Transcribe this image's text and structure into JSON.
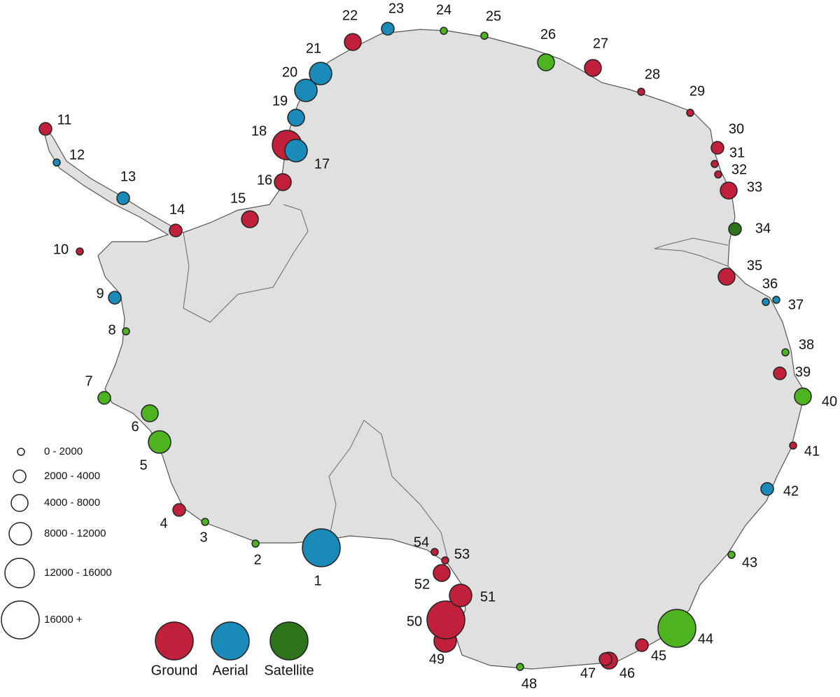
{
  "size_legend": [
    "0 - 2000",
    "2000 - 4000",
    "4000 - 8000",
    "8000 - 12000",
    "12000 - 16000",
    "16000 +"
  ],
  "method_legend": [
    {
      "name": "Ground",
      "color": "#c0203a"
    },
    {
      "name": "Aerial",
      "color": "#1a8ab8"
    },
    {
      "name": "Satellite",
      "color": "#2e741a"
    }
  ],
  "sites": [
    {
      "label": "1",
      "color": "#1a8ab8",
      "size_class": "16000 +"
    },
    {
      "label": "2",
      "color": "#4db320",
      "size_class": "0 - 2000"
    },
    {
      "label": "3",
      "color": "#4db320",
      "size_class": "0 - 2000"
    },
    {
      "label": "4",
      "color": "#c0203a",
      "size_class": "2000 - 4000"
    },
    {
      "label": "5",
      "color": "#4db320",
      "size_class": "8000 - 12000"
    },
    {
      "label": "6",
      "color": "#4db320",
      "size_class": "4000 - 8000"
    },
    {
      "label": "7",
      "color": "#4db320",
      "size_class": "2000 - 4000"
    },
    {
      "label": "8",
      "color": "#4db320",
      "size_class": "0 - 2000"
    },
    {
      "label": "9",
      "color": "#1a8ab8",
      "size_class": "2000 - 4000"
    },
    {
      "label": "10",
      "color": "#c0203a",
      "size_class": "0 - 2000"
    },
    {
      "label": "11",
      "color": "#c0203a",
      "size_class": "2000 - 4000"
    },
    {
      "label": "12",
      "color": "#1a8ab8",
      "size_class": "0 - 2000"
    },
    {
      "label": "13",
      "color": "#1a8ab8",
      "size_class": "2000 - 4000"
    },
    {
      "label": "14",
      "color": "#c0203a",
      "size_class": "2000 - 4000"
    },
    {
      "label": "15",
      "color": "#c0203a",
      "size_class": "4000 - 8000"
    },
    {
      "label": "16",
      "color": "#c0203a",
      "size_class": "4000 - 8000"
    },
    {
      "label": "18",
      "color": "#c0203a",
      "size_class": "12000 - 16000"
    },
    {
      "label": "17",
      "color": "#1a8ab8",
      "size_class": "8000 - 12000"
    },
    {
      "label": "19",
      "color": "#1a8ab8",
      "size_class": "4000 - 8000"
    },
    {
      "label": "20",
      "color": "#1a8ab8",
      "size_class": "8000 - 12000"
    },
    {
      "label": "21",
      "color": "#1a8ab8",
      "size_class": "8000 - 12000"
    },
    {
      "label": "22",
      "color": "#c0203a",
      "size_class": "4000 - 8000"
    },
    {
      "label": "23",
      "color": "#1a8ab8",
      "size_class": "2000 - 4000"
    },
    {
      "label": "24",
      "color": "#4db320",
      "size_class": "0 - 2000"
    },
    {
      "label": "25",
      "color": "#4db320",
      "size_class": "0 - 2000"
    },
    {
      "label": "26",
      "color": "#4db320",
      "size_class": "4000 - 8000"
    },
    {
      "label": "27",
      "color": "#c0203a",
      "size_class": "4000 - 8000"
    },
    {
      "label": "28",
      "color": "#c0203a",
      "size_class": "0 - 2000"
    },
    {
      "label": "29",
      "color": "#c0203a",
      "size_class": "0 - 2000"
    },
    {
      "label": "30",
      "color": "#c0203a",
      "size_class": "2000 - 4000"
    },
    {
      "label": "31",
      "color": "#c0203a",
      "size_class": "0 - 2000"
    },
    {
      "label": "32",
      "color": "#c0203a",
      "size_class": "0 - 2000"
    },
    {
      "label": "33",
      "color": "#c0203a",
      "size_class": "4000 - 8000"
    },
    {
      "label": "34",
      "color": "#2e741a",
      "size_class": "2000 - 4000"
    },
    {
      "label": "35",
      "color": "#c0203a",
      "size_class": "4000 - 8000"
    },
    {
      "label": "36",
      "color": "#1a8ab8",
      "size_class": "0 - 2000"
    },
    {
      "label": "37",
      "color": "#1a8ab8",
      "size_class": "0 - 2000"
    },
    {
      "label": "38",
      "color": "#4db320",
      "size_class": "0 - 2000"
    },
    {
      "label": "39",
      "color": "#c0203a",
      "size_class": "2000 - 4000"
    },
    {
      "label": "40",
      "color": "#4db320",
      "size_class": "4000 - 8000"
    },
    {
      "label": "41",
      "color": "#c0203a",
      "size_class": "0 - 2000"
    },
    {
      "label": "42",
      "color": "#1a8ab8",
      "size_class": "2000 - 4000"
    },
    {
      "label": "43",
      "color": "#4db320",
      "size_class": "0 - 2000"
    },
    {
      "label": "44",
      "color": "#4db320",
      "size_class": "16000 +"
    },
    {
      "label": "45",
      "color": "#c0203a",
      "size_class": "2000 - 4000"
    },
    {
      "label": "46",
      "color": "#c0203a",
      "size_class": "4000 - 8000"
    },
    {
      "label": "47",
      "color": "#c0203a",
      "size_class": "2000 - 4000"
    },
    {
      "label": "48",
      "color": "#4db320",
      "size_class": "0 - 2000"
    },
    {
      "label": "49",
      "color": "#c0203a",
      "size_class": "8000 - 12000"
    },
    {
      "label": "50",
      "color": "#c0203a",
      "size_class": "16000 +"
    },
    {
      "label": "51",
      "color": "#c0203a",
      "size_class": "8000 - 12000"
    },
    {
      "label": "52",
      "color": "#c0203a",
      "size_class": "4000 - 8000"
    },
    {
      "label": "53",
      "color": "#c0203a",
      "size_class": "0 - 2000"
    },
    {
      "label": "54",
      "color": "#c0203a",
      "size_class": "0 - 2000"
    }
  ]
}
